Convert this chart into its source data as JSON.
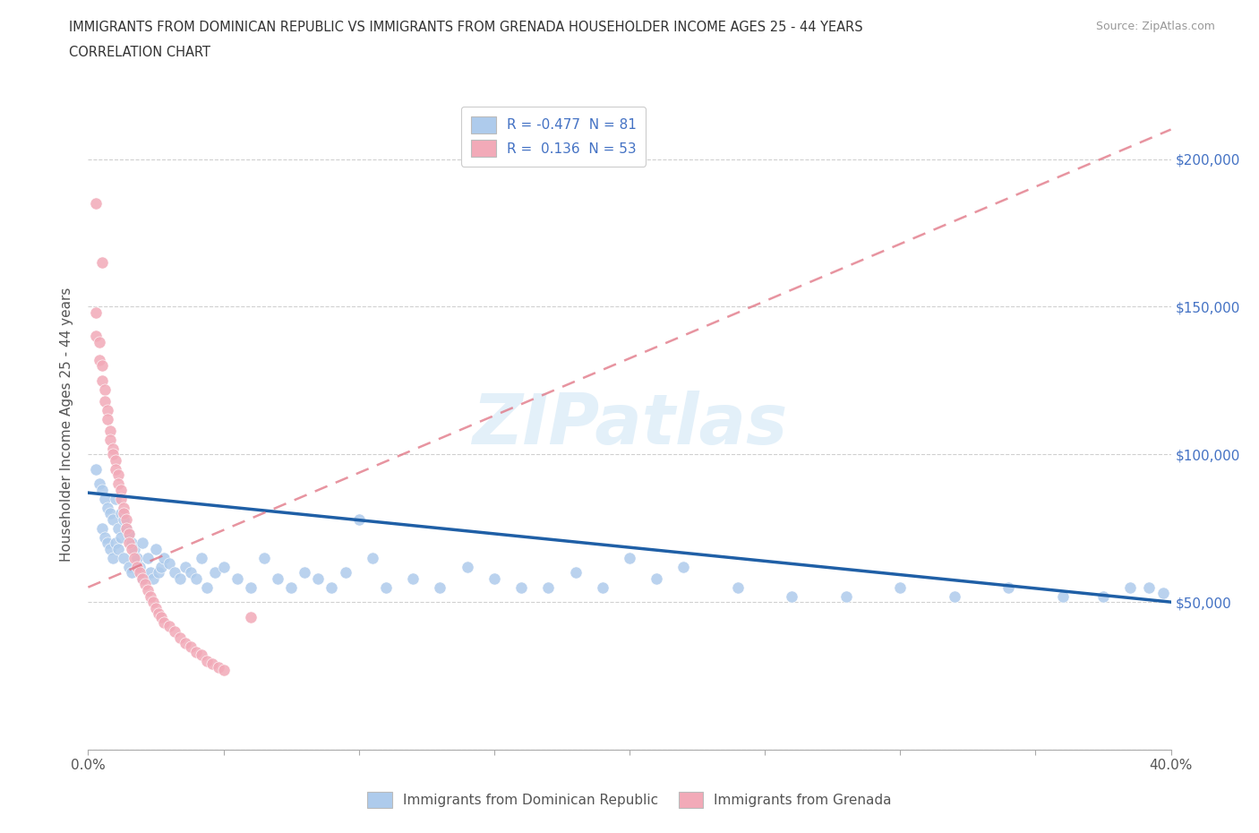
{
  "title_line1": "IMMIGRANTS FROM DOMINICAN REPUBLIC VS IMMIGRANTS FROM GRENADA HOUSEHOLDER INCOME AGES 25 - 44 YEARS",
  "title_line2": "CORRELATION CHART",
  "source": "Source: ZipAtlas.com",
  "ylabel": "Householder Income Ages 25 - 44 years",
  "xlim": [
    0.0,
    0.4
  ],
  "ylim": [
    0,
    220000
  ],
  "yticks": [
    0,
    50000,
    100000,
    150000,
    200000
  ],
  "ytick_labels_right": [
    "$50,000",
    "$100,000",
    "$150,000",
    "$200,000"
  ],
  "yticks_right": [
    50000,
    100000,
    150000,
    200000
  ],
  "xticks": [
    0.0,
    0.05,
    0.1,
    0.15,
    0.2,
    0.25,
    0.3,
    0.35,
    0.4
  ],
  "xtick_labels": [
    "0.0%",
    "",
    "",
    "",
    "",
    "",
    "",
    "",
    "40.0%"
  ],
  "dr_color": "#aecbec",
  "gr_color": "#f2aab8",
  "dr_line_color": "#1f5fa6",
  "gr_line_color": "#e07080",
  "watermark": "ZIPatlas",
  "background_color": "#ffffff",
  "dr_R": -0.477,
  "gr_R": 0.136,
  "dr_N": 81,
  "gr_N": 53,
  "dr_trend_x": [
    0.0,
    0.4
  ],
  "dr_trend_y": [
    87000,
    50000
  ],
  "gr_trend_x": [
    0.0,
    0.4
  ],
  "gr_trend_y": [
    55000,
    210000
  ],
  "dr_scatter_x": [
    0.003,
    0.004,
    0.005,
    0.005,
    0.006,
    0.006,
    0.007,
    0.007,
    0.008,
    0.008,
    0.009,
    0.009,
    0.01,
    0.01,
    0.011,
    0.011,
    0.012,
    0.012,
    0.013,
    0.013,
    0.014,
    0.015,
    0.015,
    0.016,
    0.016,
    0.017,
    0.018,
    0.019,
    0.02,
    0.02,
    0.022,
    0.023,
    0.024,
    0.025,
    0.026,
    0.027,
    0.028,
    0.03,
    0.032,
    0.034,
    0.036,
    0.038,
    0.04,
    0.042,
    0.044,
    0.047,
    0.05,
    0.055,
    0.06,
    0.065,
    0.07,
    0.075,
    0.08,
    0.085,
    0.09,
    0.095,
    0.1,
    0.105,
    0.11,
    0.12,
    0.13,
    0.14,
    0.15,
    0.16,
    0.17,
    0.18,
    0.19,
    0.2,
    0.21,
    0.22,
    0.24,
    0.26,
    0.28,
    0.3,
    0.32,
    0.34,
    0.36,
    0.375,
    0.385,
    0.392,
    0.397
  ],
  "dr_scatter_y": [
    95000,
    90000,
    88000,
    75000,
    85000,
    72000,
    82000,
    70000,
    80000,
    68000,
    78000,
    65000,
    85000,
    70000,
    75000,
    68000,
    80000,
    72000,
    78000,
    65000,
    75000,
    73000,
    62000,
    70000,
    60000,
    68000,
    65000,
    62000,
    70000,
    58000,
    65000,
    60000,
    58000,
    68000,
    60000,
    62000,
    65000,
    63000,
    60000,
    58000,
    62000,
    60000,
    58000,
    65000,
    55000,
    60000,
    62000,
    58000,
    55000,
    65000,
    58000,
    55000,
    60000,
    58000,
    55000,
    60000,
    78000,
    65000,
    55000,
    58000,
    55000,
    62000,
    58000,
    55000,
    55000,
    60000,
    55000,
    65000,
    58000,
    62000,
    55000,
    52000,
    52000,
    55000,
    52000,
    55000,
    52000,
    52000,
    55000,
    55000,
    53000
  ],
  "gr_scatter_x": [
    0.003,
    0.003,
    0.004,
    0.004,
    0.005,
    0.005,
    0.006,
    0.006,
    0.007,
    0.007,
    0.008,
    0.008,
    0.009,
    0.009,
    0.01,
    0.01,
    0.011,
    0.011,
    0.012,
    0.012,
    0.013,
    0.013,
    0.014,
    0.014,
    0.015,
    0.015,
    0.016,
    0.017,
    0.018,
    0.019,
    0.02,
    0.021,
    0.022,
    0.023,
    0.024,
    0.025,
    0.026,
    0.027,
    0.028,
    0.03,
    0.032,
    0.034,
    0.036,
    0.038,
    0.04,
    0.042,
    0.044,
    0.046,
    0.048,
    0.05,
    0.003,
    0.005,
    0.06
  ],
  "gr_scatter_y": [
    148000,
    140000,
    138000,
    132000,
    130000,
    125000,
    122000,
    118000,
    115000,
    112000,
    108000,
    105000,
    102000,
    100000,
    98000,
    95000,
    93000,
    90000,
    88000,
    85000,
    82000,
    80000,
    78000,
    75000,
    73000,
    70000,
    68000,
    65000,
    62000,
    60000,
    58000,
    56000,
    54000,
    52000,
    50000,
    48000,
    46000,
    45000,
    43000,
    42000,
    40000,
    38000,
    36000,
    35000,
    33000,
    32000,
    30000,
    29000,
    28000,
    27000,
    185000,
    165000,
    45000
  ],
  "legend_dr_label": "R = -0.477  N = 81",
  "legend_gr_label": "R =  0.136  N = 53",
  "bottom_legend_dr": "Immigrants from Dominican Republic",
  "bottom_legend_gr": "Immigrants from Grenada"
}
